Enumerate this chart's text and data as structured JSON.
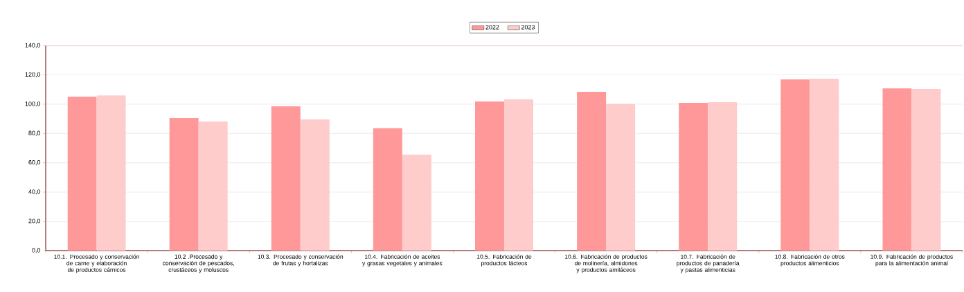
{
  "chart_data": {
    "type": "bar",
    "categories": [
      "10.1. Procesado y conservación de carne y elaboración de productos cárnicos",
      "10.2 .Procesado y conservación de pescados, crustáceos y moluscos",
      "10.3. Procesado y conservación de frutas y hortalizas",
      "10.4. Fabricación de aceites y grasas vegetales y animales",
      "10.5. Fabricación de productos lácteos",
      "10.6. Fabricación de productos de molinería, almidones y productos amiláceos",
      "10.7. Fabricación de productos de panadería y pastas alimenticias",
      "10.8. Fabricación de otros productos alimenticios",
      "10.9. Fabricación de productos para la alimentación animal"
    ],
    "series": [
      {
        "name": "2022",
        "color": "#ff9999",
        "values": [
          105.1,
          90.5,
          98.5,
          83.5,
          101.8,
          108.4,
          100.9,
          116.9,
          110.8
        ]
      },
      {
        "name": "2023",
        "color": "#ffcccc",
        "values": [
          106.0,
          88.2,
          89.6,
          65.5,
          103.3,
          100.0,
          101.4,
          117.4,
          110.3
        ]
      }
    ],
    "ylim": [
      0,
      140
    ],
    "yticks": [
      {
        "value": 0,
        "label": "0,0"
      },
      {
        "value": 20,
        "label": "20,0"
      },
      {
        "value": 40,
        "label": "40,0"
      },
      {
        "value": 60,
        "label": "60,0"
      },
      {
        "value": 80,
        "label": "80,0"
      },
      {
        "value": 100,
        "label": "100,0"
      },
      {
        "value": 120,
        "label": "120,0"
      },
      {
        "value": 140,
        "label": "140,0"
      }
    ],
    "grid": "y",
    "legend": "top"
  }
}
